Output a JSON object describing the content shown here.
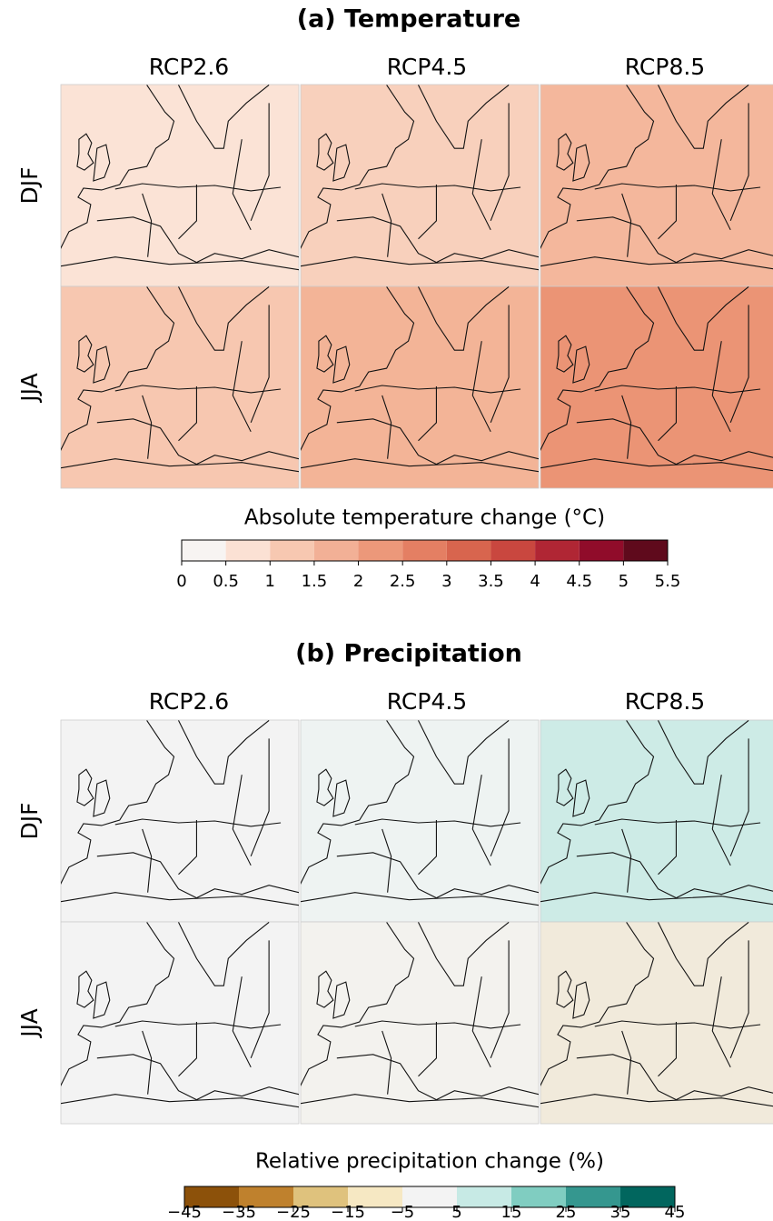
{
  "panels": [
    {
      "title": "(a) Temperature",
      "columns": [
        "RCP2.6",
        "RCP4.5",
        "RCP8.5"
      ],
      "rows": [
        "DJF",
        "JJA"
      ],
      "colorbar": {
        "label": "Absolute temperature change (°C)",
        "ticks": [
          0,
          0.5,
          1,
          1.5,
          2,
          2.5,
          3,
          3.5,
          4,
          4.5,
          5,
          5.5
        ],
        "colors": [
          "#f7f4f2",
          "#fbe1d4",
          "#f7c8b1",
          "#f2b096",
          "#ec987a",
          "#e47f63",
          "#d8654e",
          "#c9473f",
          "#b02634",
          "#900c2a",
          "#5f0a1c"
        ]
      }
    },
    {
      "title": "(b) Precipitation",
      "columns": [
        "RCP2.6",
        "RCP4.5",
        "RCP8.5"
      ],
      "rows": [
        "DJF",
        "JJA"
      ],
      "colorbar": {
        "label": "Relative precipitation change (%)",
        "ticks": [
          {
            "value": -45,
            "label": "−45"
          },
          {
            "value": -35,
            "label": "−35"
          },
          {
            "value": -25,
            "label": "−25"
          },
          {
            "value": -15,
            "label": "−15"
          },
          {
            "value": -5,
            "label": "−5"
          },
          5,
          15,
          25,
          35,
          45
        ],
        "colors": [
          "#8c510a",
          "#bf812d",
          "#dfc27d",
          "#f6e8c3",
          "#f3f3f3",
          "#c7eae5",
          "#80cdc1",
          "#35978f",
          "#01665e"
        ]
      }
    }
  ]
}
